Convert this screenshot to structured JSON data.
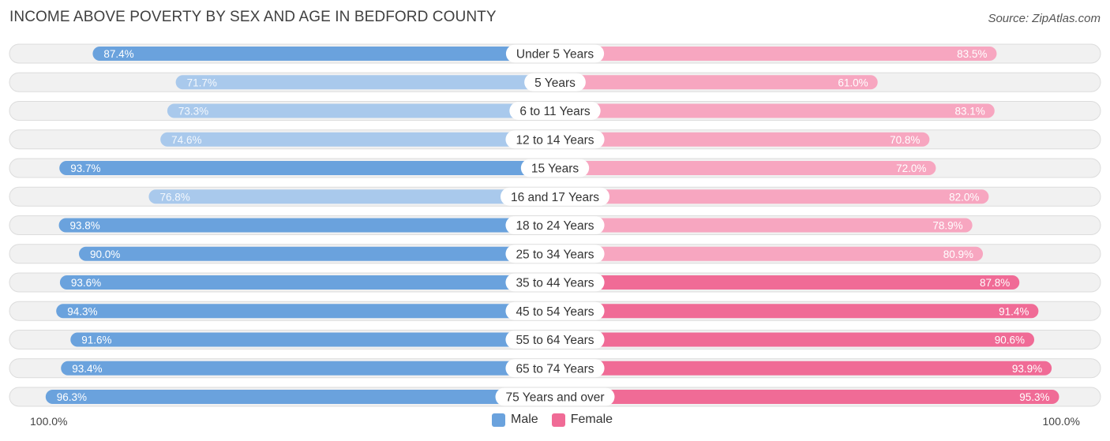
{
  "chart_data": {
    "type": "bar",
    "orientation": "horizontal-diverging",
    "title": "INCOME ABOVE POVERTY BY SEX AND AGE IN BEDFORD COUNTY",
    "source": "Source: ZipAtlas.com",
    "categories": [
      "Under 5 Years",
      "5 Years",
      "6 to 11 Years",
      "12 to 14 Years",
      "15 Years",
      "16 and 17 Years",
      "18 to 24 Years",
      "25 to 34 Years",
      "35 to 44 Years",
      "45 to 54 Years",
      "55 to 64 Years",
      "65 to 74 Years",
      "75 Years and over"
    ],
    "series": [
      {
        "name": "Male",
        "values": [
          87.4,
          71.7,
          73.3,
          74.6,
          93.7,
          76.8,
          93.8,
          90.0,
          93.6,
          94.3,
          91.6,
          93.4,
          96.3
        ],
        "labels": [
          "87.4%",
          "71.7%",
          "73.3%",
          "74.6%",
          "93.7%",
          "76.8%",
          "93.8%",
          "90.0%",
          "93.6%",
          "94.3%",
          "91.6%",
          "93.4%",
          "96.3%"
        ]
      },
      {
        "name": "Female",
        "values": [
          83.5,
          61.0,
          83.1,
          70.8,
          72.0,
          82.0,
          78.9,
          80.9,
          87.8,
          91.4,
          90.6,
          93.9,
          95.3
        ],
        "labels": [
          "83.5%",
          "61.0%",
          "83.1%",
          "70.8%",
          "72.0%",
          "82.0%",
          "78.9%",
          "80.9%",
          "87.8%",
          "91.4%",
          "90.6%",
          "93.9%",
          "95.3%"
        ]
      }
    ],
    "xlim": [
      0,
      100
    ],
    "axis_left_label": "100.0%",
    "axis_right_label": "100.0%",
    "legend_position": "bottom-center",
    "colors": {
      "male_strong": "#6aa2dd",
      "male_light": "#a9c9ec",
      "female_strong": "#f06b96",
      "female_light": "#f7a6c0",
      "track": "#f1f1f1",
      "track_border": "#dcdcdc"
    }
  },
  "legend": {
    "male": "Male",
    "female": "Female"
  }
}
